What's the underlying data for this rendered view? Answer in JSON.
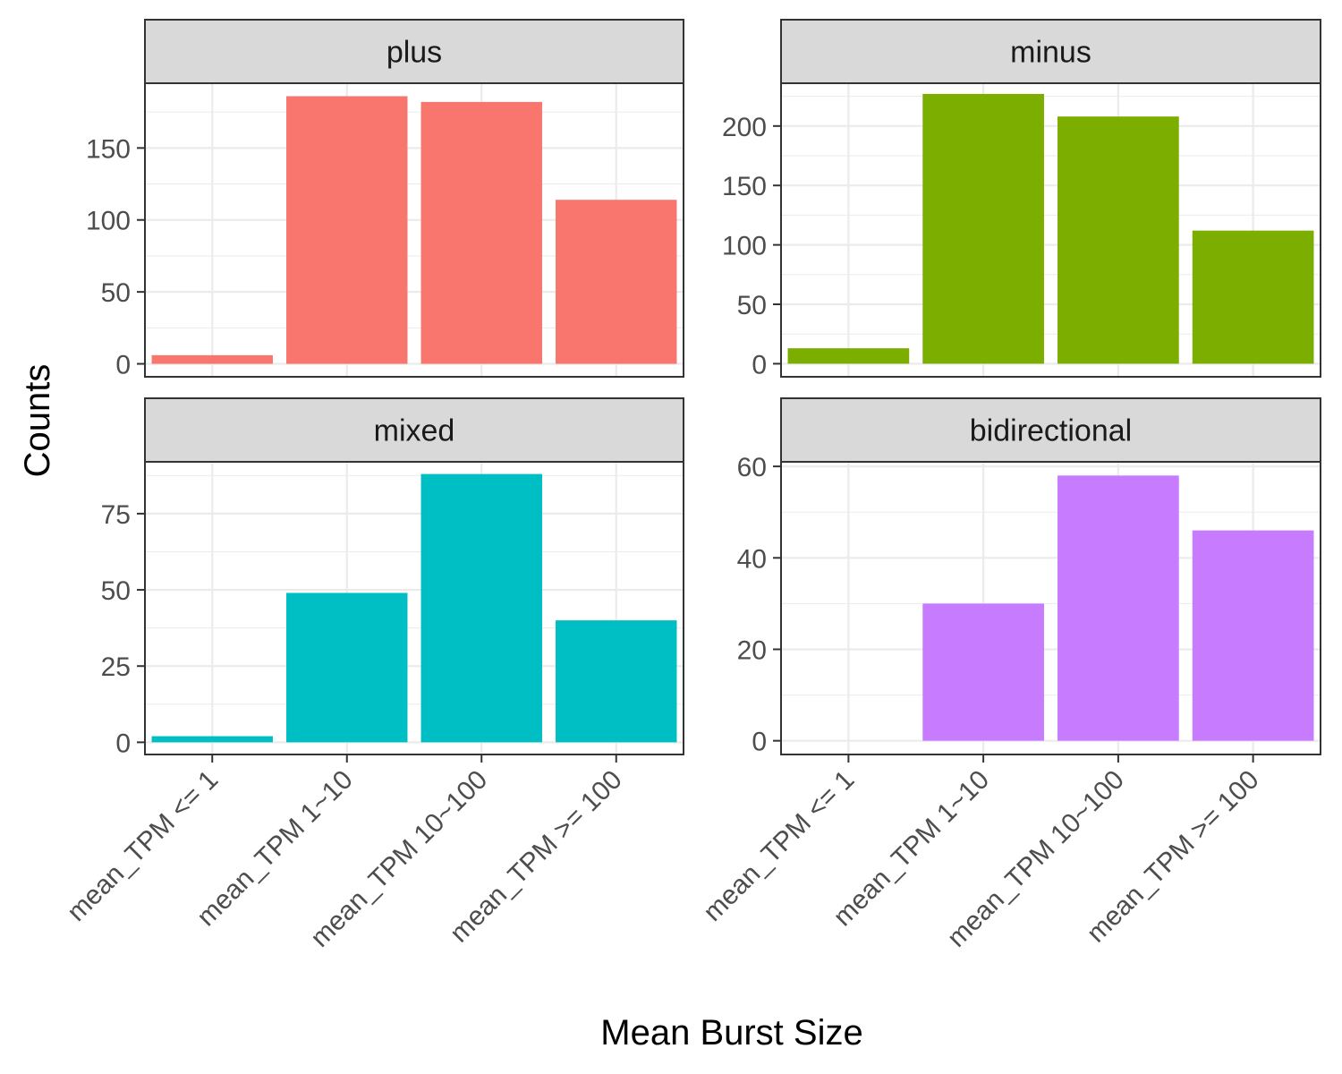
{
  "chart_data": {
    "type": "bar",
    "xlabel": "Mean Burst Size",
    "ylabel": "Counts",
    "categories": [
      "mean_TPM <= 1",
      "mean_TPM 1~10",
      "mean_TPM 10~100",
      "mean_TPM >= 100"
    ],
    "grid": true,
    "panels": [
      {
        "name": "plus",
        "color": "#F8766D",
        "values": [
          6,
          186,
          182,
          114
        ],
        "ylim": [
          -9,
          195
        ],
        "yticks": [
          0,
          50,
          100,
          150
        ],
        "ytick_labels": [
          "0",
          "50",
          "100",
          "150"
        ]
      },
      {
        "name": "minus",
        "color": "#7CAE00",
        "values": [
          13,
          227,
          208,
          112
        ],
        "ylim": [
          -11,
          236
        ],
        "yticks": [
          0,
          50,
          100,
          150,
          200
        ],
        "ytick_labels": [
          "0",
          "50",
          "100",
          "150",
          "200"
        ]
      },
      {
        "name": "mixed",
        "color": "#00BFC4",
        "values": [
          2,
          49,
          88,
          40
        ],
        "ylim": [
          -4,
          92
        ],
        "yticks": [
          0,
          25,
          50,
          75
        ],
        "ytick_labels": [
          "0",
          "25",
          "50",
          "75"
        ]
      },
      {
        "name": "bidirectional",
        "color": "#C77CFF",
        "values": [
          0,
          30,
          58,
          46
        ],
        "ylim": [
          -3,
          61
        ],
        "yticks": [
          0,
          20,
          40,
          60
        ],
        "ytick_labels": [
          "0",
          "20",
          "40",
          "60"
        ]
      }
    ]
  }
}
